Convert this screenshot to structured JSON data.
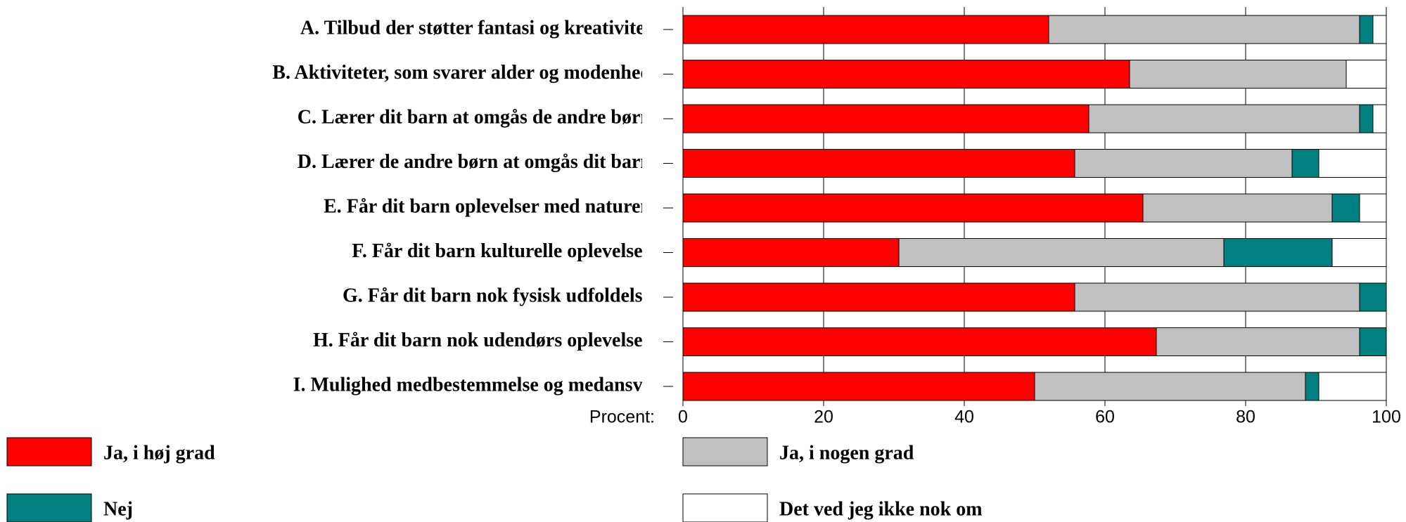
{
  "chart_data": {
    "type": "stacked_barh",
    "x_label": "Procent:",
    "categories": [
      "A. Tilbud der støtter fantasi og kreativitet?",
      "B. Aktiviteter, som svarer alder og modenhed?",
      "C. Lærer dit barn at omgås de andre børn?",
      "D. Lærer de andre børn at omgås dit barn?",
      "E. Får dit barn oplevelser med naturen?",
      "F. Får dit barn kulturelle oplevelser?",
      "G. Får dit barn nok fysisk udfoldelse?",
      "H. Får dit barn nok udendørs oplevelser?",
      "I. Mulighed medbestemmelse og medansvar"
    ],
    "series": [
      {
        "name": "Ja, i høj grad",
        "color": "#ff0000",
        "values": [
          52.0,
          63.5,
          57.7,
          55.7,
          65.4,
          30.7,
          55.7,
          67.3,
          50.0
        ]
      },
      {
        "name": "Ja, i nogen grad",
        "color": "#c0c0c0",
        "values": [
          44.2,
          30.8,
          38.5,
          30.9,
          26.9,
          46.2,
          40.5,
          28.9,
          38.5
        ]
      },
      {
        "name": "Nej",
        "color": "#008080",
        "values": [
          1.9,
          0,
          1.9,
          3.8,
          3.9,
          15.4,
          3.8,
          3.8,
          1.9
        ]
      },
      {
        "name": "Det ved jeg ikke nok om",
        "color": "#ffffff",
        "values": [
          1.9,
          5.7,
          1.9,
          9.6,
          3.8,
          7.7,
          0,
          0,
          9.6
        ]
      }
    ],
    "xlim": [
      0,
      100
    ],
    "xticks": [
      0,
      20,
      40,
      60,
      80,
      100
    ],
    "grid": true
  }
}
